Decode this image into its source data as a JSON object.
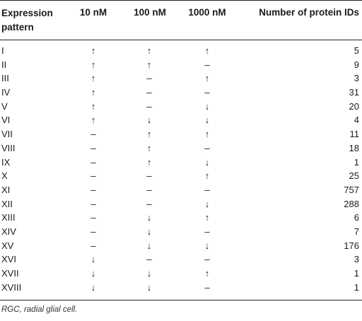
{
  "header": {
    "pattern": "Expression\npattern",
    "c10": "10 nM",
    "c100": "100 nM",
    "c1000": "1000 nM",
    "count": "Number of protein IDs"
  },
  "rows": [
    {
      "pattern": "I",
      "c10": "↑",
      "c100": "↑",
      "c1000": "↑",
      "count": "5"
    },
    {
      "pattern": "II",
      "c10": "↑",
      "c100": "↑",
      "c1000": "–",
      "count": "9"
    },
    {
      "pattern": "III",
      "c10": "↑",
      "c100": "–",
      "c1000": "↑",
      "count": "3"
    },
    {
      "pattern": "IV",
      "c10": "↑",
      "c100": "–",
      "c1000": "–",
      "count": "31"
    },
    {
      "pattern": "V",
      "c10": "↑",
      "c100": "–",
      "c1000": "↓",
      "count": "20"
    },
    {
      "pattern": "VI",
      "c10": "↑",
      "c100": "↓",
      "c1000": "↓",
      "count": "4"
    },
    {
      "pattern": "VII",
      "c10": "–",
      "c100": "↑",
      "c1000": "↑",
      "count": "11"
    },
    {
      "pattern": "VIII",
      "c10": "–",
      "c100": "↑",
      "c1000": "–",
      "count": "18"
    },
    {
      "pattern": "IX",
      "c10": "–",
      "c100": "↑",
      "c1000": "↓",
      "count": "1"
    },
    {
      "pattern": "X",
      "c10": "–",
      "c100": "–",
      "c1000": "↑",
      "count": "25"
    },
    {
      "pattern": "XI",
      "c10": "–",
      "c100": "–",
      "c1000": "–",
      "count": "757"
    },
    {
      "pattern": "XII",
      "c10": "–",
      "c100": "–",
      "c1000": "↓",
      "count": "288"
    },
    {
      "pattern": "XIII",
      "c10": "–",
      "c100": "↓",
      "c1000": "↑",
      "count": "6"
    },
    {
      "pattern": "XIV",
      "c10": "–",
      "c100": "↓",
      "c1000": "–",
      "count": "7"
    },
    {
      "pattern": "XV",
      "c10": "–",
      "c100": "↓",
      "c1000": "↓",
      "count": "176"
    },
    {
      "pattern": "XVI",
      "c10": "↓",
      "c100": "–",
      "c1000": "–",
      "count": "3"
    },
    {
      "pattern": "XVII",
      "c10": "↓",
      "c100": "↓",
      "c1000": "↑",
      "count": "1"
    },
    {
      "pattern": "XVIII",
      "c10": "↓",
      "c100": "↓",
      "c1000": "–",
      "count": "1"
    }
  ],
  "footnote": "RGC, radial glial cell."
}
